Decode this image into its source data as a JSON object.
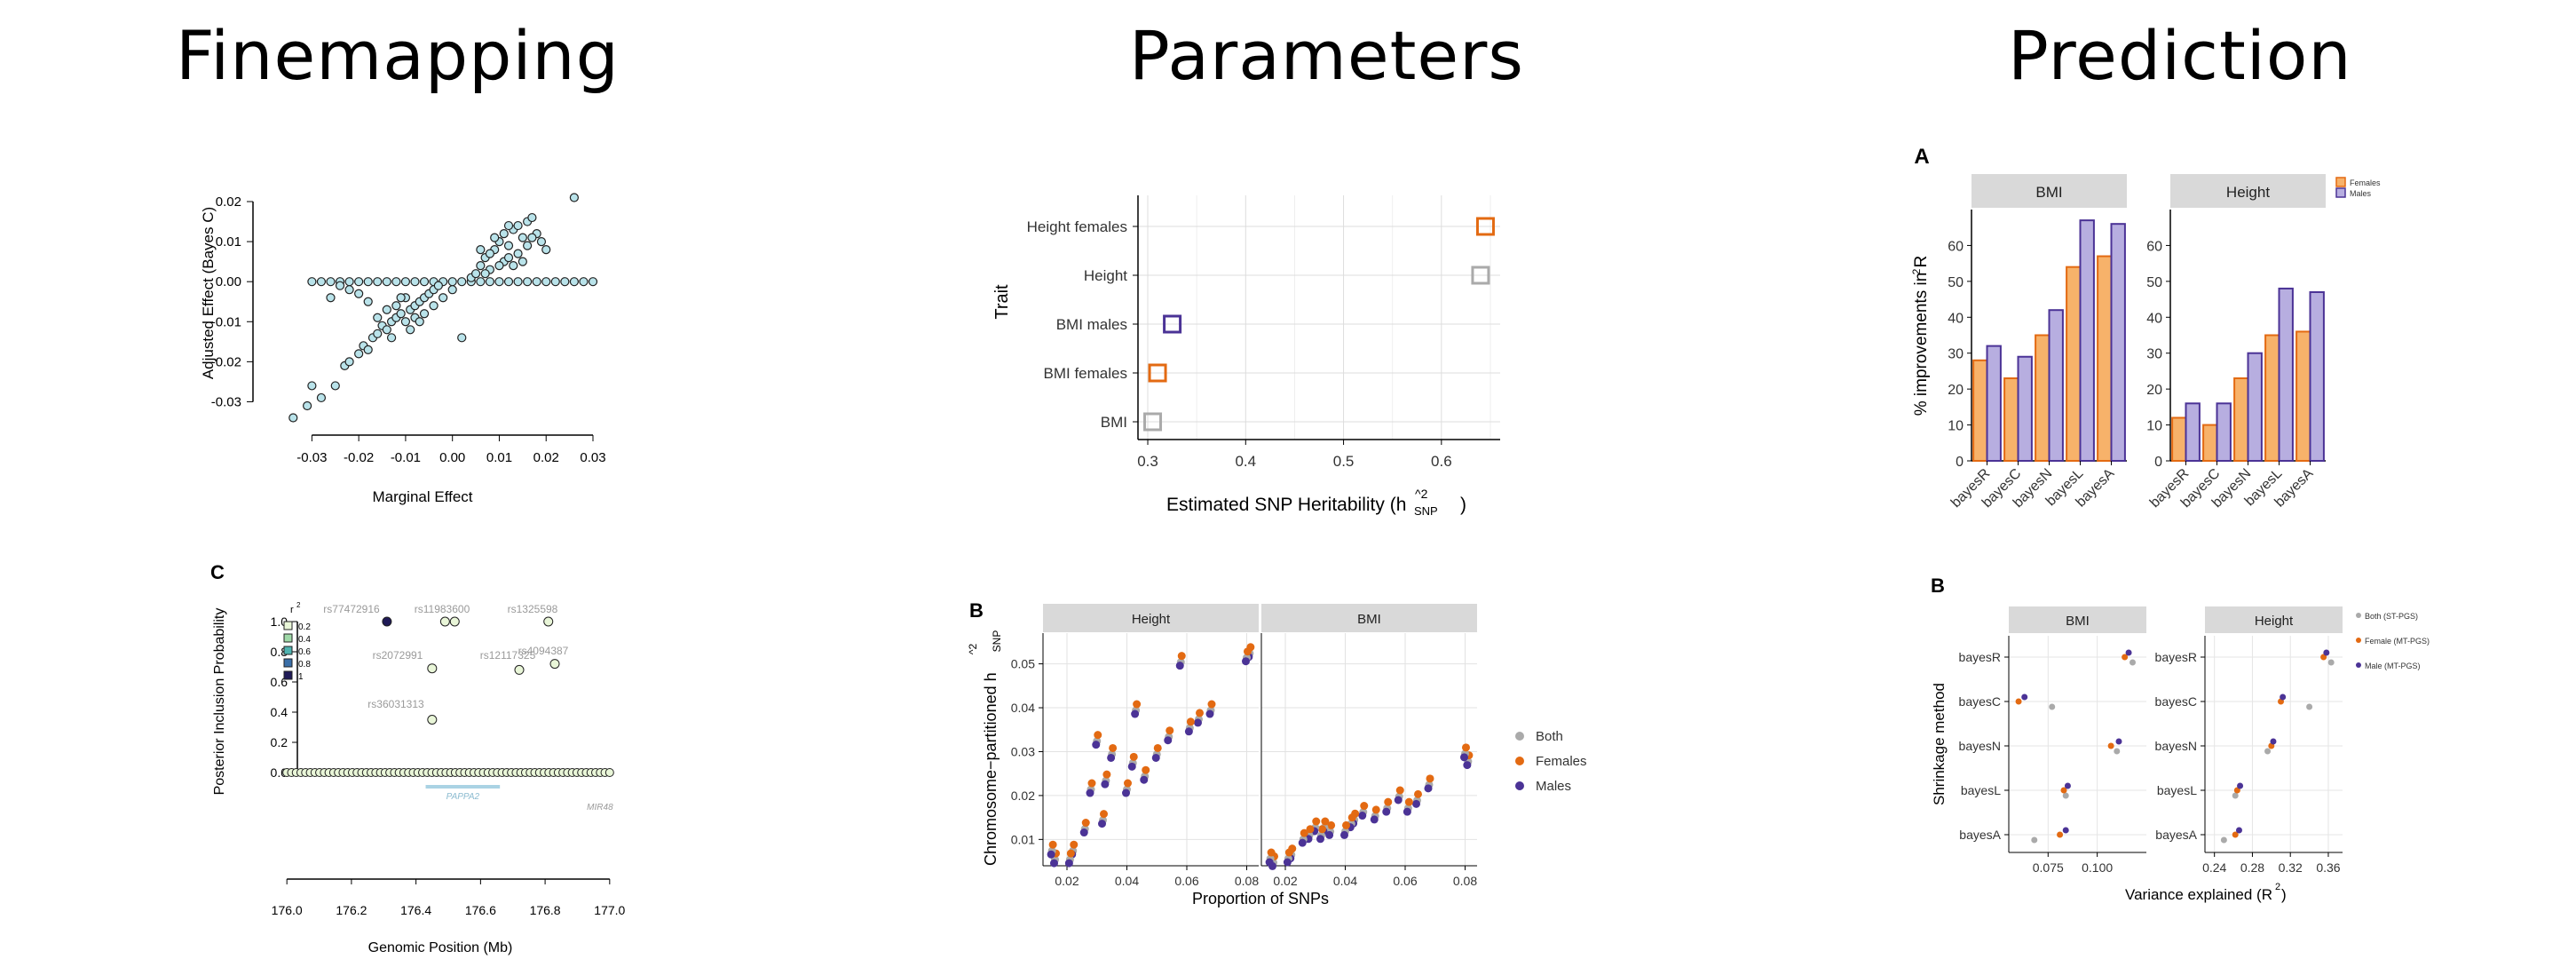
{
  "titles": {
    "left": "Finemapping",
    "middle": "Parameters",
    "right": "Prediction"
  },
  "colors": {
    "both": "#aaaaaa",
    "females": "#e36a12",
    "males": "#4b3396",
    "bar_females": "#f7b26a",
    "bar_males": "#b7aee0",
    "scatter_fill": "#b9e3ea",
    "strip": "#d9d9d9"
  },
  "chart_data": [
    {
      "id": "marginal-vs-adjusted",
      "type": "scatter",
      "title": "",
      "xlabel": "Marginal Effect",
      "ylabel": "Adjusted Effect (Bayes C)",
      "xlim": [
        -0.035,
        0.03
      ],
      "ylim": [
        -0.035,
        0.022
      ],
      "xticks": [
        "-0.03",
        "-0.02",
        "-0.01",
        "0.00",
        "0.01",
        "0.02",
        "0.03"
      ],
      "xtick_values": [
        -0.03,
        -0.02,
        -0.01,
        0.0,
        0.01,
        0.02,
        0.03
      ],
      "yticks": [
        "0.02",
        "0.01",
        "0.00",
        "-0.01",
        "-0.02",
        "-0.03"
      ],
      "ytick_values": [
        0.02,
        0.01,
        0.0,
        -0.01,
        -0.02,
        -0.03
      ],
      "points": [
        [
          -0.034,
          -0.034
        ],
        [
          -0.031,
          -0.031
        ],
        [
          -0.03,
          -0.026
        ],
        [
          -0.028,
          -0.029
        ],
        [
          -0.025,
          -0.026
        ],
        [
          -0.023,
          -0.021
        ],
        [
          -0.022,
          -0.02
        ],
        [
          -0.02,
          -0.018
        ],
        [
          -0.019,
          -0.016
        ],
        [
          -0.018,
          -0.017
        ],
        [
          -0.017,
          -0.014
        ],
        [
          -0.016,
          -0.013
        ],
        [
          -0.015,
          -0.011
        ],
        [
          -0.014,
          -0.012
        ],
        [
          -0.013,
          -0.01
        ],
        [
          -0.012,
          -0.009
        ],
        [
          -0.011,
          -0.008
        ],
        [
          -0.01,
          -0.01
        ],
        [
          -0.009,
          -0.007
        ],
        [
          -0.008,
          -0.006
        ],
        [
          -0.007,
          -0.005
        ],
        [
          -0.006,
          -0.004
        ],
        [
          -0.005,
          -0.003
        ],
        [
          -0.004,
          -0.002
        ],
        [
          -0.01,
          -0.004
        ],
        [
          -0.012,
          -0.006
        ],
        [
          -0.014,
          -0.007
        ],
        [
          -0.008,
          -0.009
        ],
        [
          -0.006,
          -0.008
        ],
        [
          -0.016,
          -0.009
        ],
        [
          -0.018,
          -0.005
        ],
        [
          -0.02,
          -0.003
        ],
        [
          -0.022,
          -0.002
        ],
        [
          -0.024,
          -0.001
        ],
        [
          -0.026,
          -0.004
        ],
        [
          -0.004,
          -0.006
        ],
        [
          -0.002,
          -0.004
        ],
        [
          -0.003,
          -0.001
        ],
        [
          0.0,
          -0.002
        ],
        [
          0.002,
          -0.014
        ],
        [
          0.004,
          0.001
        ],
        [
          0.005,
          0.002
        ],
        [
          0.006,
          0.004
        ],
        [
          0.007,
          0.006
        ],
        [
          0.008,
          0.003
        ],
        [
          0.009,
          0.008
        ],
        [
          0.01,
          0.01
        ],
        [
          0.011,
          0.012
        ],
        [
          0.012,
          0.009
        ],
        [
          0.013,
          0.013
        ],
        [
          0.014,
          0.014
        ],
        [
          0.015,
          0.011
        ],
        [
          0.016,
          0.015
        ],
        [
          0.017,
          0.016
        ],
        [
          0.018,
          0.012
        ],
        [
          0.019,
          0.01
        ],
        [
          0.02,
          0.008
        ],
        [
          0.011,
          0.005
        ],
        [
          0.012,
          0.006
        ],
        [
          0.013,
          0.004
        ],
        [
          0.008,
          0.007
        ],
        [
          0.009,
          0.011
        ],
        [
          0.01,
          0.004
        ],
        [
          0.006,
          0.008
        ],
        [
          0.014,
          0.007
        ],
        [
          0.015,
          0.005
        ],
        [
          0.016,
          0.009
        ],
        [
          0.017,
          0.011
        ],
        [
          0.012,
          0.014
        ],
        [
          0.007,
          0.002
        ],
        [
          0.026,
          0.021
        ],
        [
          -0.013,
          -0.014
        ],
        [
          -0.009,
          -0.012
        ],
        [
          -0.007,
          -0.01
        ],
        [
          -0.011,
          -0.004
        ]
      ],
      "zero_points_x": [
        -0.03,
        -0.028,
        -0.026,
        -0.024,
        -0.022,
        -0.02,
        -0.018,
        -0.016,
        -0.014,
        -0.012,
        -0.01,
        -0.008,
        -0.006,
        -0.004,
        -0.002,
        0.0,
        0.002,
        0.004,
        0.006,
        0.008,
        0.01,
        0.012,
        0.014,
        0.016,
        0.018,
        0.02,
        0.022,
        0.024,
        0.026,
        0.028,
        0.03
      ]
    },
    {
      "id": "locus-pip",
      "type": "scatter",
      "panel_label": "C",
      "xlabel": "Genomic Position (Mb)",
      "ylabel": "Posterior Inclusion Probability",
      "xlim": [
        175.95,
        177.05
      ],
      "ylim": [
        0.0,
        1.05
      ],
      "xticks": [
        "176.0",
        "176.2",
        "176.4",
        "176.6",
        "176.8",
        "177.0"
      ],
      "xtick_values": [
        176.0,
        176.2,
        176.4,
        176.6,
        176.8,
        177.0
      ],
      "yticks": [
        "1.0",
        "0.8",
        "0.6",
        "0.4",
        "0.2",
        "0.0"
      ],
      "ytick_values": [
        1.0,
        0.8,
        0.6,
        0.4,
        0.2,
        0.0
      ],
      "legend_title": "r2",
      "legend_entries": [
        "0.2",
        "0.4",
        "0.6",
        "0.8",
        "1"
      ],
      "legend_colors": [
        "#e9f6d8",
        "#9fd9a8",
        "#4fb3b0",
        "#3a6fa8",
        "#1f1a57"
      ],
      "snps": [
        {
          "label": "rs77472916",
          "x": 176.31,
          "y": 1.0,
          "r2": 1
        },
        {
          "label": "rs11983600",
          "x": 176.49,
          "y": 1.0,
          "r2": 0.2
        },
        {
          "label": "rs11983600",
          "x": 176.52,
          "y": 1.0,
          "r2": 0.2
        },
        {
          "label": "rs1325598",
          "x": 176.81,
          "y": 1.0,
          "r2": 0.2
        },
        {
          "label": "rs2072991",
          "x": 176.45,
          "y": 0.69,
          "r2": 0.2
        },
        {
          "label": "rs12117325",
          "x": 176.72,
          "y": 0.68,
          "r2": 0.2
        },
        {
          "label": "rs4094387",
          "x": 176.83,
          "y": 0.72,
          "r2": 0.2
        },
        {
          "label": "rs36031313",
          "x": 176.45,
          "y": 0.35,
          "r2": 0.2
        }
      ],
      "gene_labels": [
        "PAPPA2",
        "MIR48"
      ],
      "gene_range": [
        176.43,
        176.66
      ]
    },
    {
      "id": "heritability",
      "type": "scatter",
      "xlabel": "Estimated SNP Heritability (h",
      "xlabel_sup": "^2",
      "xlabel_sub": "SNP",
      "ylabel": "Trait",
      "xlim": [
        0.29,
        0.66
      ],
      "xticks": [
        "0.3",
        "0.4",
        "0.5",
        "0.6"
      ],
      "xtick_values": [
        0.3,
        0.4,
        0.5,
        0.6
      ],
      "categories": [
        "Height females",
        "Height",
        "BMI males",
        "BMI females",
        "BMI"
      ],
      "values": [
        0.645,
        0.64,
        0.325,
        0.31,
        0.305
      ],
      "group": [
        "females",
        "both",
        "males",
        "females",
        "both"
      ]
    },
    {
      "id": "chromosome-h2",
      "type": "scatter",
      "panel_label": "B",
      "xlabel": "Proportion of SNPs",
      "ylabel": "Chromosome−partitioned h",
      "ylabel_sup": "^2",
      "ylabel_sub": "SNP",
      "facets": [
        "Height",
        "BMI"
      ],
      "xlim": [
        0.012,
        0.084
      ],
      "xticks": [
        "0.02",
        "0.04",
        "0.06",
        "0.08"
      ],
      "xtick_values": [
        0.02,
        0.04,
        0.06,
        0.08
      ],
      "ylim_height": [
        0.004,
        0.057
      ],
      "ylim_bmi": [
        0.0005,
        0.0375
      ],
      "yticks": [
        "0.05",
        "0.04",
        "0.03",
        "0.02",
        "0.01"
      ],
      "ytick_values": [
        0.05,
        0.04,
        0.03,
        0.02,
        0.01
      ],
      "legend": [
        "Both",
        "Females",
        "Males"
      ],
      "prop_snps": [
        0.081,
        0.08,
        0.068,
        0.064,
        0.061,
        0.058,
        0.054,
        0.05,
        0.046,
        0.043,
        0.042,
        0.04,
        0.035,
        0.033,
        0.032,
        0.03,
        0.028,
        0.026,
        0.022,
        0.021,
        0.016,
        0.015
      ],
      "height_values": [
        0.053,
        0.052,
        0.04,
        0.038,
        0.036,
        0.051,
        0.034,
        0.03,
        0.025,
        0.04,
        0.028,
        0.022,
        0.03,
        0.024,
        0.015,
        0.033,
        0.022,
        0.013,
        0.008,
        0.006,
        0.006,
        0.008
      ],
      "bmi_values": [
        0.028,
        0.03,
        0.022,
        0.018,
        0.016,
        0.019,
        0.016,
        0.014,
        0.015,
        0.013,
        0.012,
        0.01,
        0.01,
        0.011,
        0.009,
        0.011,
        0.009,
        0.008,
        0.004,
        0.003,
        0.002,
        0.003
      ]
    },
    {
      "id": "pct-improvement",
      "type": "bar",
      "panel_label": "A",
      "ylabel": "% improvements in R",
      "ylabel_sup": "2",
      "facets": [
        "BMI",
        "Height"
      ],
      "categories": [
        "bayesR",
        "bayesC",
        "bayesN",
        "bayesL",
        "bayesA"
      ],
      "ylim": [
        0,
        70
      ],
      "yticks": [
        "0",
        "10",
        "20",
        "30",
        "40",
        "50",
        "60"
      ],
      "ytick_values": [
        0,
        10,
        20,
        30,
        40,
        50,
        60
      ],
      "legend": [
        "Females",
        "Males"
      ],
      "series": [
        {
          "facet": "BMI",
          "name": "Females",
          "values": [
            28,
            23,
            35,
            54,
            57
          ]
        },
        {
          "facet": "BMI",
          "name": "Males",
          "values": [
            32,
            29,
            42,
            67,
            66
          ]
        },
        {
          "facet": "Height",
          "name": "Females",
          "values": [
            12,
            10,
            23,
            35,
            36
          ]
        },
        {
          "facet": "Height",
          "name": "Males",
          "values": [
            16,
            16,
            30,
            48,
            47
          ]
        }
      ]
    },
    {
      "id": "variance-explained",
      "type": "scatter",
      "panel_label": "B",
      "xlabel": "Variance explained (R",
      "xlabel_sup": "2",
      "ylabel": "Shrinkage method",
      "facets": [
        "BMI",
        "Height"
      ],
      "categories": [
        "bayesR",
        "bayesC",
        "bayesN",
        "bayesL",
        "bayesA"
      ],
      "xticks_bmi": [
        "0.075",
        "0.100"
      ],
      "xtick_values_bmi": [
        0.075,
        0.1
      ],
      "xlim_bmi": [
        0.055,
        0.125
      ],
      "xticks_height": [
        "0.24",
        "0.28",
        "0.32",
        "0.36"
      ],
      "xtick_values_height": [
        0.24,
        0.28,
        0.32,
        0.36
      ],
      "xlim_height": [
        0.23,
        0.375
      ],
      "legend": [
        "Both (ST-PGS)",
        "Female (MT-PGS)",
        "Male (MT-PGS)"
      ],
      "series": [
        {
          "facet": "BMI",
          "name": "Both",
          "values": [
            0.118,
            0.077,
            0.11,
            0.084,
            0.068
          ]
        },
        {
          "facet": "BMI",
          "name": "Female",
          "values": [
            0.114,
            0.06,
            0.107,
            0.083,
            0.081
          ]
        },
        {
          "facet": "BMI",
          "name": "Male",
          "values": [
            0.116,
            0.063,
            0.111,
            0.085,
            0.084
          ]
        },
        {
          "facet": "Height",
          "name": "Both",
          "values": [
            0.363,
            0.34,
            0.296,
            0.262,
            0.25
          ]
        },
        {
          "facet": "Height",
          "name": "Female",
          "values": [
            0.355,
            0.31,
            0.3,
            0.264,
            0.262
          ]
        },
        {
          "facet": "Height",
          "name": "Male",
          "values": [
            0.358,
            0.312,
            0.302,
            0.267,
            0.266
          ]
        }
      ]
    }
  ]
}
